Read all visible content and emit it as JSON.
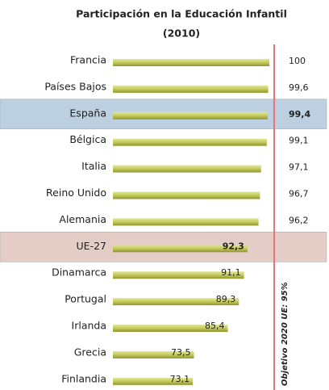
{
  "chart_data": {
    "type": "bar",
    "orientation": "horizontal",
    "title": "Participación en la Educación Infantil",
    "subtitle": "(2010)",
    "categories": [
      "Francia",
      "Países Bajos",
      "España",
      "Bélgica",
      "Italia",
      "Reino Unido",
      "Alemania",
      "UE-27",
      "Dinamarca",
      "Portugal",
      "Irlanda",
      "Grecia",
      "Finlandia"
    ],
    "values": [
      100,
      99.6,
      99.4,
      99.1,
      97.1,
      96.7,
      96.2,
      92.3,
      91.1,
      89.3,
      85.4,
      73.5,
      73.1
    ],
    "value_labels": [
      "100",
      "99,6",
      "99,4",
      "99,1",
      "97,1",
      "96,7",
      "96,2",
      "92,3",
      "91,1",
      "89,3",
      "85,4",
      "73,5",
      "73,1"
    ],
    "color": "#c3c95a",
    "band_colors": [
      null,
      null,
      "#bcd0e1",
      null,
      null,
      null,
      null,
      "#e4cdc7",
      null,
      null,
      null,
      null,
      null
    ],
    "xlim": [
      45,
      100
    ],
    "annotation": "Objetivo 2020 UE: 95%",
    "target_line_color": "#e8737a"
  }
}
